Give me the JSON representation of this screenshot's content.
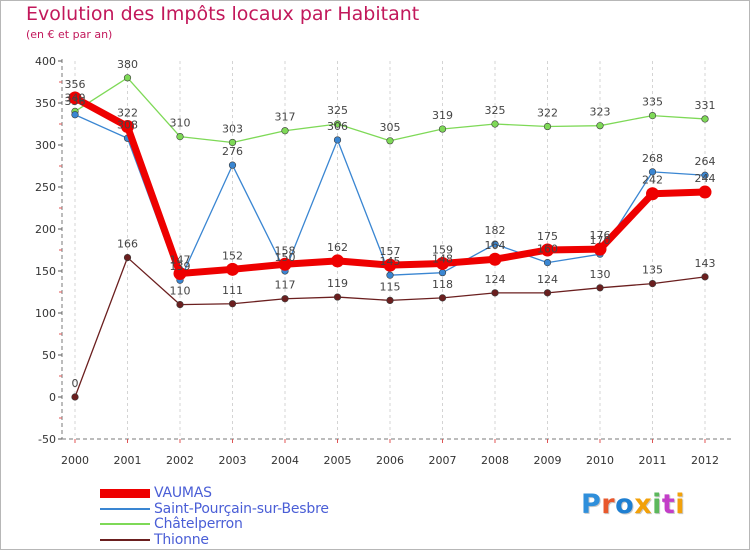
{
  "chart_data": {
    "type": "line",
    "title": "Evolution des Impôts locaux par Habitant",
    "subtitle": "(en € et par an)",
    "xlabel": "",
    "ylabel": "",
    "categories": [
      "2000",
      "2001",
      "2002",
      "2003",
      "2004",
      "2005",
      "2006",
      "2007",
      "2008",
      "2009",
      "2010",
      "2011",
      "2012"
    ],
    "ylim": [
      -50,
      400
    ],
    "yticks": [
      -50,
      0,
      50,
      100,
      150,
      200,
      250,
      300,
      350,
      400
    ],
    "ytick_labels": [
      "-50",
      "0",
      "50",
      "100",
      "150",
      "200",
      "250",
      "300",
      "350",
      "400"
    ],
    "grid": "x-dashed",
    "legend_position": "bottom-left",
    "series": [
      {
        "name": "VAUMAS",
        "color": "#ee0000",
        "values": [
          356,
          322,
          147,
          152,
          158,
          162,
          157,
          159,
          164,
          175,
          176,
          242,
          244
        ],
        "labels": [
          "356",
          "322",
          "147",
          "152",
          "158",
          "162",
          "157",
          "159",
          "164",
          "175",
          "176",
          "242",
          "244"
        ]
      },
      {
        "name": "Saint-Pourçain-sur-Besbre",
        "color": "#3a86d2",
        "values": [
          336,
          308,
          139,
          276,
          150,
          306,
          145,
          148,
          182,
          160,
          170,
          268,
          264
        ],
        "labels": [
          "336",
          "308",
          "139",
          "276",
          "150",
          "306",
          "145",
          "148",
          "182",
          "160",
          "170",
          "268",
          "264"
        ]
      },
      {
        "name": "Châtelperron",
        "color": "#7ed957",
        "values": [
          340,
          380,
          310,
          303,
          317,
          325,
          305,
          319,
          325,
          322,
          323,
          335,
          331
        ],
        "labels": [
          "340",
          "380",
          "310",
          "303",
          "317",
          "325",
          "305",
          "319",
          "325",
          "322",
          "323",
          "335",
          "331"
        ]
      },
      {
        "name": "Thionne",
        "color": "#6b1f1f",
        "values": [
          0,
          166,
          110,
          111,
          117,
          119,
          115,
          118,
          124,
          124,
          130,
          135,
          143
        ],
        "labels": [
          "0",
          "166",
          "110",
          "111",
          "117",
          "119",
          "115",
          "118",
          "124",
          "124",
          "130",
          "135",
          "143"
        ]
      }
    ],
    "logo_text": "Proxiti"
  }
}
